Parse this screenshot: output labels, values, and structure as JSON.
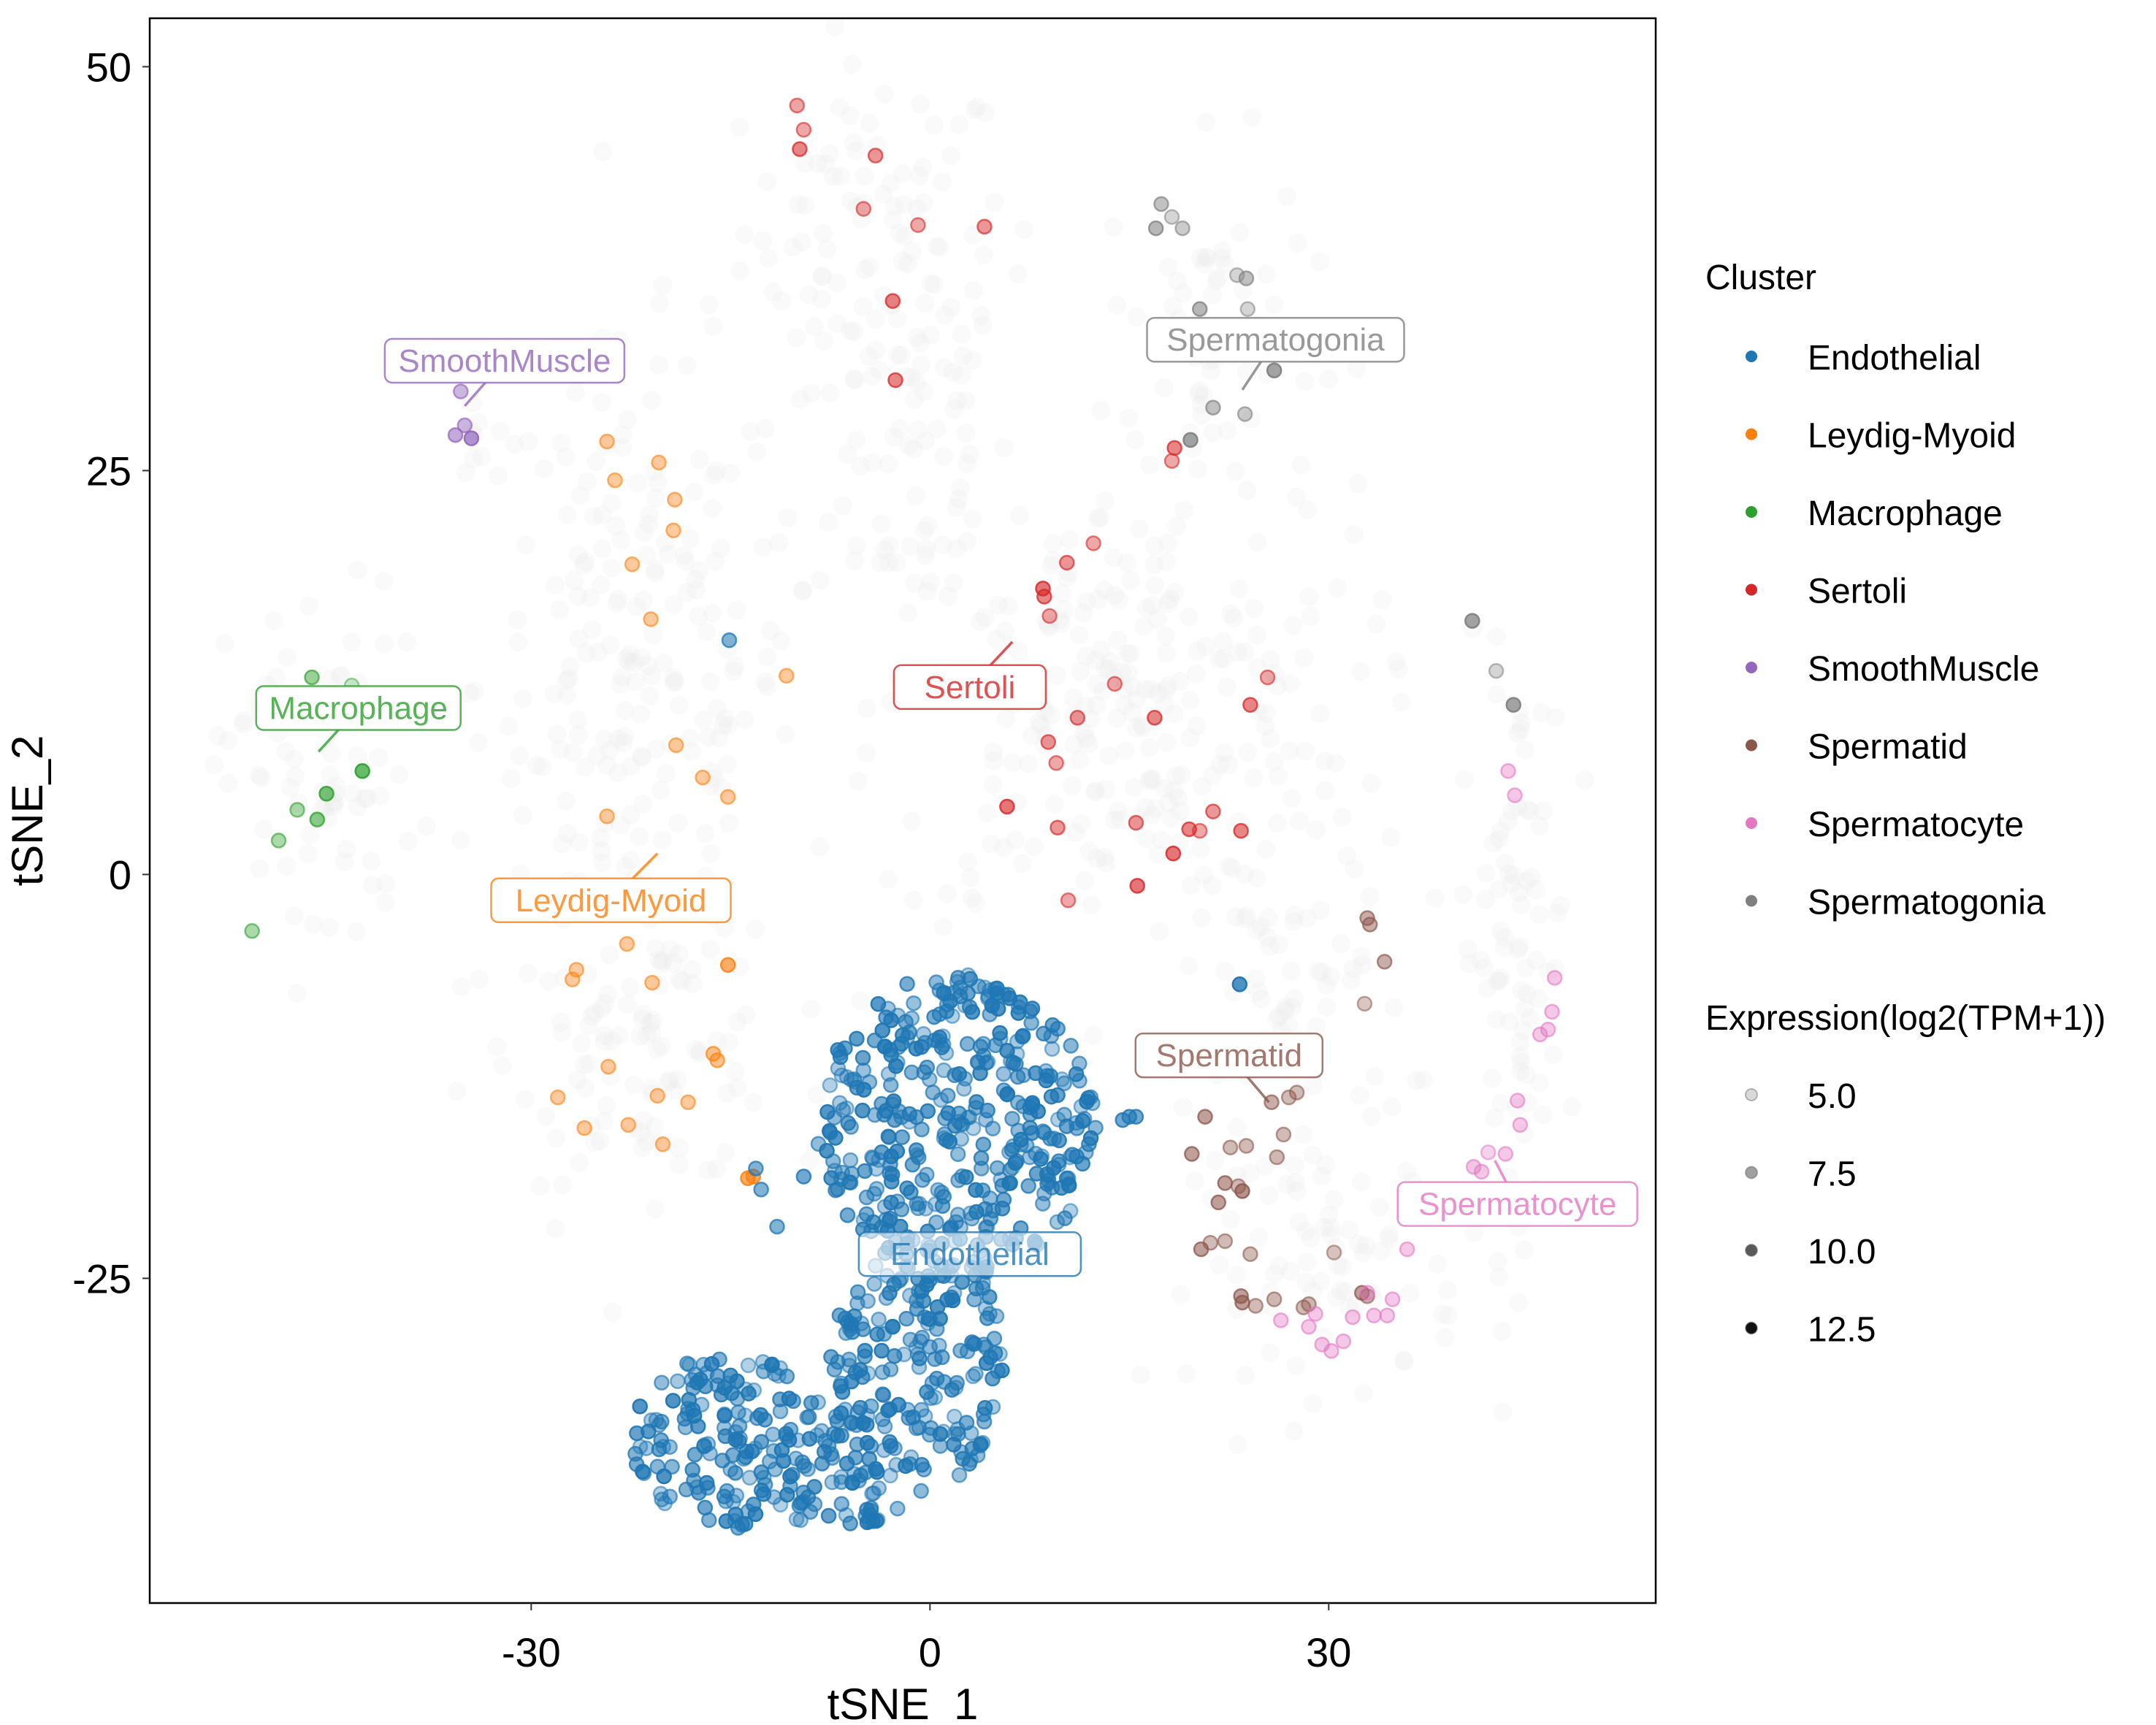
{
  "chart_data": {
    "type": "scatter",
    "title": "",
    "xlabel": "tSNE_1",
    "ylabel": "tSNE_2",
    "xlim": [
      -58.7,
      54.6
    ],
    "ylim": [
      -45.1,
      53.0
    ],
    "x_ticks": [
      -30,
      0,
      30
    ],
    "y_ticks": [
      -25,
      0,
      25,
      50
    ],
    "x_tick_labels": [
      "-30",
      "0",
      "30"
    ],
    "y_tick_labels": [
      "-25",
      "0",
      "25",
      "50"
    ],
    "grid": false,
    "legend_placement": "right",
    "legend_cluster": {
      "title": "Cluster",
      "entries": [
        {
          "name": "Endothelial",
          "color": "#1f77b4"
        },
        {
          "name": "Leydig-Myoid",
          "color": "#ff7f0e"
        },
        {
          "name": "Macrophage",
          "color": "#2ca02c"
        },
        {
          "name": "Sertoli",
          "color": "#d62728"
        },
        {
          "name": "SmoothMuscle",
          "color": "#9467bd"
        },
        {
          "name": "Spermatid",
          "color": "#8c564b"
        },
        {
          "name": "Spermatocyte",
          "color": "#e377c2"
        },
        {
          "name": "Spermatogonia",
          "color": "#7f7f7f"
        }
      ]
    },
    "legend_expression": {
      "title": "Expression(log2(TPM+1))",
      "entries": [
        {
          "label": "5.0",
          "value": 5.0,
          "color": "#d9d9d9"
        },
        {
          "label": "7.5",
          "value": 7.5,
          "color": "#a0a0a0"
        },
        {
          "label": "10.0",
          "value": 10.0,
          "color": "#5a5a5a"
        },
        {
          "label": "12.5",
          "value": 12.5,
          "color": "#111111"
        }
      ]
    },
    "cluster_labels": [
      {
        "text": "SmoothMuscle",
        "cluster": "SmoothMuscle",
        "x": -32,
        "y": 31.8,
        "anchor_x": -35,
        "anchor_y": 29
      },
      {
        "text": "Spermatogonia",
        "cluster": "Spermatogonia",
        "x": 26,
        "y": 33.1,
        "anchor_x": 23.5,
        "anchor_y": 30
      },
      {
        "text": "Macrophage",
        "cluster": "Macrophage",
        "x": -43,
        "y": 10.3,
        "anchor_x": -46,
        "anchor_y": 7.6
      },
      {
        "text": "Sertoli",
        "cluster": "Sertoli",
        "x": 3,
        "y": 11.6,
        "anchor_x": 6.2,
        "anchor_y": 14.4
      },
      {
        "text": "Leydig-Myoid",
        "cluster": "Leydig-Myoid",
        "x": -24,
        "y": -1.6,
        "anchor_x": -20.5,
        "anchor_y": 1.3
      },
      {
        "text": "Spermatid",
        "cluster": "Spermatid",
        "x": 22.5,
        "y": -11.2,
        "anchor_x": 25.5,
        "anchor_y": -14.1
      },
      {
        "text": "Spermatocyte",
        "cluster": "Spermatocyte",
        "x": 44.2,
        "y": -20.4,
        "anchor_x": 42.5,
        "anchor_y": -17.7
      },
      {
        "text": "Endothelial",
        "cluster": "Endothelial",
        "x": 3,
        "y": -23.5,
        "anchor_x": 3,
        "anchor_y": -23.5
      }
    ],
    "series": [
      {
        "name": "Sertoli",
        "points": [
          [
            -10,
            47.6,
            6
          ],
          [
            -9.5,
            46.1,
            6
          ],
          [
            -9.8,
            44.9,
            8
          ],
          [
            -4.1,
            44.5,
            7
          ],
          [
            -5,
            41.2,
            6
          ],
          [
            -0.9,
            40.2,
            6
          ],
          [
            4.1,
            40.1,
            7
          ],
          [
            -2.8,
            35.5,
            8
          ],
          [
            -2.6,
            30.6,
            8
          ],
          [
            18.4,
            26.4,
            8
          ],
          [
            18.2,
            25.6,
            6
          ],
          [
            12.3,
            20.5,
            6
          ],
          [
            10.3,
            19.3,
            7
          ],
          [
            8.5,
            17.7,
            9
          ],
          [
            8.6,
            17.2,
            8
          ],
          [
            9.0,
            16.0,
            6
          ],
          [
            13.9,
            11.8,
            6
          ],
          [
            25.4,
            12.2,
            6
          ],
          [
            24.1,
            10.5,
            8
          ],
          [
            11.1,
            9.7,
            7
          ],
          [
            16.9,
            9.7,
            8
          ],
          [
            8.9,
            8.2,
            7
          ],
          [
            9.5,
            6.9,
            6
          ],
          [
            5.8,
            4.2,
            9
          ],
          [
            9.6,
            2.9,
            7
          ],
          [
            15.5,
            3.2,
            7
          ],
          [
            19.5,
            2.8,
            8
          ],
          [
            20.3,
            2.7,
            6
          ],
          [
            23.4,
            2.7,
            8
          ],
          [
            21.3,
            3.9,
            7
          ],
          [
            18.3,
            1.3,
            9
          ],
          [
            15.6,
            -0.7,
            9
          ],
          [
            10.4,
            -1.6,
            6
          ]
        ]
      },
      {
        "name": "Spermatogonia",
        "points": [
          [
            17.4,
            41.5,
            7
          ],
          [
            18.2,
            40.7,
            5
          ],
          [
            17.0,
            40.0,
            8
          ],
          [
            19.0,
            40.0,
            6
          ],
          [
            23.1,
            37.1,
            5
          ],
          [
            23.8,
            36.9,
            7
          ],
          [
            20.3,
            35.0,
            8
          ],
          [
            23.9,
            35.0,
            5
          ],
          [
            25.9,
            31.2,
            10
          ],
          [
            21.3,
            28.9,
            7
          ],
          [
            23.7,
            28.5,
            6
          ],
          [
            19.6,
            26.9,
            10
          ],
          [
            40.8,
            15.7,
            10
          ],
          [
            42.6,
            12.6,
            5
          ],
          [
            43.9,
            10.5,
            10
          ]
        ]
      },
      {
        "name": "SmoothMuscle",
        "points": [
          [
            -35.3,
            29.9,
            7
          ],
          [
            -35.0,
            27.8,
            7
          ],
          [
            -35.7,
            27.2,
            8
          ],
          [
            -34.5,
            27.0,
            10
          ]
        ]
      },
      {
        "name": "Macrophage",
        "points": [
          [
            -46.5,
            12.2,
            7
          ],
          [
            -43.5,
            11.7,
            4
          ],
          [
            -49.4,
            10.9,
            4
          ],
          [
            -42.7,
            6.4,
            10
          ],
          [
            -45.4,
            5.0,
            9
          ],
          [
            -47.6,
            4.0,
            6
          ],
          [
            -46.1,
            3.4,
            8
          ],
          [
            -49.0,
            2.1,
            6
          ],
          [
            -51.0,
            -3.5,
            6
          ]
        ]
      },
      {
        "name": "Leydig-Myoid",
        "points": [
          [
            -24.3,
            26.8,
            6
          ],
          [
            -20.4,
            25.5,
            6
          ],
          [
            -23.7,
            24.4,
            6
          ],
          [
            -19.2,
            23.2,
            6
          ],
          [
            -19.3,
            21.3,
            6
          ],
          [
            -22.4,
            19.2,
            6
          ],
          [
            -21.0,
            15.8,
            6
          ],
          [
            -10.8,
            12.3,
            6
          ],
          [
            -19.1,
            8.0,
            6
          ],
          [
            -17.1,
            6.0,
            6
          ],
          [
            -15.2,
            4.8,
            6
          ],
          [
            -24.3,
            3.6,
            6
          ],
          [
            -22.8,
            -4.3,
            6
          ],
          [
            -26.6,
            -5.9,
            6
          ],
          [
            -26.9,
            -6.5,
            6
          ],
          [
            -20.9,
            -6.7,
            6
          ],
          [
            -15.2,
            -5.6,
            9
          ],
          [
            -24.2,
            -11.9,
            6
          ],
          [
            -16.3,
            -11.1,
            7
          ],
          [
            -16.0,
            -11.5,
            7
          ],
          [
            -28.0,
            -13.8,
            6
          ],
          [
            -20.5,
            -13.7,
            6
          ],
          [
            -18.2,
            -14.1,
            6
          ],
          [
            -26.0,
            -15.7,
            6
          ],
          [
            -22.7,
            -15.5,
            6
          ],
          [
            -20.1,
            -16.7,
            6
          ],
          [
            -13.7,
            -18.8,
            9
          ],
          [
            -13.3,
            -18.7,
            9
          ]
        ]
      },
      {
        "name": "Spermatid",
        "points": [
          [
            32.9,
            -2.7,
            7
          ],
          [
            33.1,
            -3.1,
            7
          ],
          [
            34.2,
            -5.4,
            7
          ],
          [
            32.7,
            -8.0,
            5
          ],
          [
            25.7,
            -14.1,
            7
          ],
          [
            27.0,
            -13.8,
            6
          ],
          [
            27.6,
            -13.5,
            6
          ],
          [
            20.7,
            -15.0,
            8
          ],
          [
            22.6,
            -16.9,
            6
          ],
          [
            23.8,
            -16.8,
            6
          ],
          [
            26.6,
            -16.1,
            6
          ],
          [
            26.1,
            -17.5,
            6
          ],
          [
            19.7,
            -17.3,
            8
          ],
          [
            22.2,
            -19.1,
            8
          ],
          [
            23.2,
            -19.3,
            6
          ],
          [
            23.5,
            -19.6,
            9
          ],
          [
            21.7,
            -20.3,
            8
          ],
          [
            21.1,
            -22.8,
            6
          ],
          [
            22.2,
            -22.7,
            6
          ],
          [
            20.4,
            -23.2,
            8
          ],
          [
            24.1,
            -23.5,
            6
          ],
          [
            30.4,
            -23.4,
            5
          ],
          [
            23.4,
            -26.1,
            8
          ],
          [
            23.5,
            -26.5,
            8
          ],
          [
            24.5,
            -26.7,
            6
          ],
          [
            25.9,
            -26.3,
            6
          ],
          [
            28.1,
            -26.8,
            6
          ],
          [
            28.5,
            -26.6,
            6
          ],
          [
            32.5,
            -25.9,
            8
          ],
          [
            32.9,
            -26.1,
            6
          ]
        ]
      },
      {
        "name": "Spermatocyte",
        "points": [
          [
            43.5,
            6.4,
            6
          ],
          [
            44.0,
            4.9,
            6
          ],
          [
            47.0,
            -6.4,
            6
          ],
          [
            46.8,
            -8.5,
            6
          ],
          [
            46.5,
            -9.6,
            6
          ],
          [
            45.9,
            -9.9,
            6
          ],
          [
            44.2,
            -14.0,
            6
          ],
          [
            44.4,
            -15.5,
            6
          ],
          [
            42.0,
            -17.2,
            5
          ],
          [
            43.3,
            -17.3,
            6
          ],
          [
            40.9,
            -18.1,
            6
          ],
          [
            41.5,
            -18.4,
            6
          ],
          [
            38.3,
            -20.9,
            6
          ],
          [
            35.9,
            -23.2,
            6
          ],
          [
            32.9,
            -25.9,
            6
          ],
          [
            33.4,
            -27.3,
            6
          ],
          [
            34.4,
            -27.3,
            6
          ],
          [
            26.4,
            -27.6,
            6
          ],
          [
            29.0,
            -27.2,
            6
          ],
          [
            31.1,
            -28.9,
            6
          ],
          [
            29.5,
            -29.1,
            6
          ],
          [
            30.2,
            -29.5,
            6
          ],
          [
            28.5,
            -28.0,
            6
          ],
          [
            34.8,
            -26.3,
            6
          ],
          [
            31.8,
            -27.4,
            6
          ]
        ]
      },
      {
        "name": "Endothelial",
        "points": [
          [
            -15.1,
            14.5,
            8
          ],
          [
            23.3,
            -6.8,
            11
          ],
          [
            15.0,
            -15.0,
            9
          ],
          [
            14.5,
            -15.2,
            9
          ],
          [
            15.5,
            -15.0,
            9
          ],
          [
            -13.1,
            -18.2,
            8
          ],
          [
            -12.7,
            -19.5,
            8
          ],
          [
            -11.5,
            -21.8,
            8
          ],
          [
            -9.5,
            -18.7,
            9
          ],
          [
            -3.0,
            -21.3,
            9
          ]
        ]
      }
    ],
    "endothelial_blob": {
      "description": "dense cluster of ~900 Endothelial cells",
      "upper_region": {
        "x_range": [
          -8.5,
          12.5
        ],
        "y_range": [
          -25,
          -6
        ]
      },
      "lower_region": {
        "x_range": [
          -22.5,
          11.5
        ],
        "y_range": [
          -40.5,
          -24
        ]
      },
      "color": "#1f77b4"
    },
    "background_note": "non-highlighted cells drawn as faint light-grey points"
  }
}
